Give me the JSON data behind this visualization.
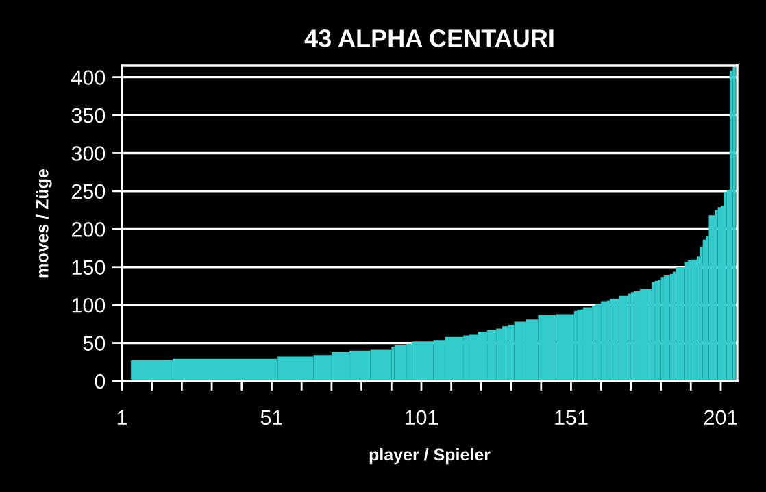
{
  "chart_data": {
    "type": "histogram",
    "title": "43 ALPHA CENTAURI",
    "xlabel": "player / Spieler",
    "ylabel": "moves / Züge",
    "color": "#33cccc",
    "bins": [
      4,
      18,
      53,
      65,
      71,
      77,
      84,
      91,
      92,
      96,
      98,
      105,
      109,
      115,
      117,
      120,
      123,
      126,
      128,
      130,
      132,
      136,
      140,
      146,
      152,
      153,
      155,
      158,
      159,
      161,
      163,
      164,
      167,
      170,
      171,
      172,
      174,
      178,
      179,
      180,
      181,
      182,
      184,
      185,
      186,
      189,
      190,
      191,
      193,
      194,
      195,
      196,
      197,
      199,
      200,
      201,
      202,
      203,
      204,
      205,
      206
    ],
    "values": [
      27,
      29,
      32,
      34,
      38,
      40,
      41,
      45,
      47,
      49,
      52,
      54,
      58,
      60,
      61,
      65,
      67,
      69,
      72,
      74,
      78,
      81,
      87,
      88,
      92,
      94,
      97,
      99,
      101,
      105,
      106,
      108,
      112,
      115,
      117,
      119,
      121,
      130,
      132,
      133,
      137,
      139,
      141,
      144,
      150,
      157,
      159,
      160,
      164,
      177,
      186,
      191,
      218,
      225,
      229,
      231,
      249,
      251,
      409,
      414
    ],
    "xlim": [
      1,
      206.5
    ],
    "ylim": [
      0,
      415
    ],
    "xticks": [
      1,
      {
        "value": 11,
        "label": null
      },
      {
        "value": 21,
        "label": null
      },
      {
        "value": 31,
        "label": null
      },
      {
        "value": 41,
        "label": null
      },
      51,
      {
        "value": 61,
        "label": null
      },
      {
        "value": 71,
        "label": null
      },
      {
        "value": 81,
        "label": null
      },
      {
        "value": 91,
        "label": null
      },
      101,
      {
        "value": 111,
        "label": null
      },
      {
        "value": 121,
        "label": null
      },
      {
        "value": 131,
        "label": null
      },
      {
        "value": 141,
        "label": null
      },
      151,
      {
        "value": 161,
        "label": null
      },
      {
        "value": 171,
        "label": null
      },
      {
        "value": 181,
        "label": null
      },
      {
        "value": 191,
        "label": null
      },
      201
    ],
    "yticks": [
      0,
      50,
      100,
      150,
      200,
      250,
      300,
      350,
      400
    ],
    "grid": "y"
  }
}
